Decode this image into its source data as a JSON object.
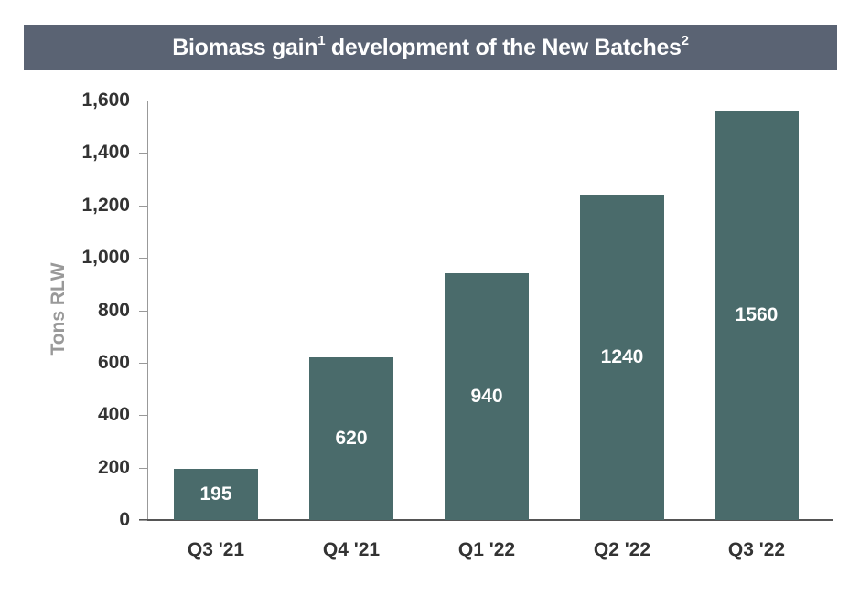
{
  "title": {
    "main": "Biomass gain",
    "sup1": "1",
    "middle": " development of the New Batches",
    "sup2": "2"
  },
  "colors": {
    "title_bg": "#5a6373",
    "bar": "#4a6b6b",
    "axis_label": "#999999",
    "tick_text": "#333333"
  },
  "chart_data": {
    "type": "bar",
    "title": "Biomass gain¹ development of the New Batches²",
    "xlabel": "",
    "ylabel": "Tons RLW",
    "categories": [
      "Q3 '21",
      "Q4 '21",
      "Q1 '22",
      "Q2 '22",
      "Q3 '22"
    ],
    "values": [
      195,
      620,
      940,
      1240,
      1560
    ],
    "data_labels": [
      "195",
      "620",
      "940",
      "1240",
      "1560"
    ],
    "ylim": [
      0,
      1600
    ],
    "yticks": [
      "0",
      "200",
      "400",
      "600",
      "800",
      "1,000",
      "1,200",
      "1,400",
      "1,600"
    ],
    "grid": false,
    "legend": null
  }
}
